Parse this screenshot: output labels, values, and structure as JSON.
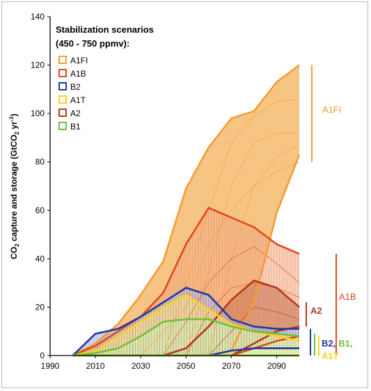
{
  "chart_data": {
    "type": "area",
    "title": "Stabilization scenarios",
    "subtitle": "(450 - 750 ppmv):",
    "xlabel": "",
    "ylabel_main": "CO",
    "ylabel_sub": "2",
    "ylabel_mid": " capture and storage (GtCO",
    "ylabel_sub2": "2",
    "ylabel_end": " yr",
    "ylabel_sup": "-1",
    "ylabel_close": ")",
    "xlim": [
      1990,
      2100
    ],
    "ylim": [
      0,
      140
    ],
    "xticks": [
      1990,
      2010,
      2030,
      2050,
      2070,
      2090
    ],
    "yticks": [
      0,
      20,
      40,
      60,
      80,
      100,
      120,
      140
    ],
    "legend": [
      {
        "name": "A1FI",
        "color": "#f39c34"
      },
      {
        "name": "A1B",
        "color": "#e2471d"
      },
      {
        "name": "B2",
        "color": "#1f3aa0"
      },
      {
        "name": "A1T",
        "color": "#ffd21a"
      },
      {
        "name": "A2",
        "color": "#b33a1e"
      },
      {
        "name": "B1",
        "color": "#6fbf3a"
      }
    ],
    "series": [
      {
        "name": "A1FI",
        "color": "#f39c34",
        "fill": "#f7c27c",
        "upper": [
          [
            2000,
            0
          ],
          [
            2010,
            5
          ],
          [
            2020,
            13
          ],
          [
            2030,
            25
          ],
          [
            2040,
            39
          ],
          [
            2050,
            69
          ],
          [
            2060,
            86
          ],
          [
            2070,
            98
          ],
          [
            2080,
            101
          ],
          [
            2090,
            113
          ],
          [
            2100,
            120
          ]
        ],
        "lower": [
          [
            2000,
            0
          ],
          [
            2010,
            0
          ],
          [
            2020,
            0
          ],
          [
            2030,
            0
          ],
          [
            2040,
            0
          ],
          [
            2050,
            0
          ],
          [
            2060,
            0
          ],
          [
            2070,
            2
          ],
          [
            2080,
            22
          ],
          [
            2090,
            59
          ],
          [
            2100,
            83
          ]
        ]
      },
      {
        "name": "A1B",
        "color": "#e2471d",
        "fill": "#f2b08a",
        "upper": [
          [
            2000,
            0
          ],
          [
            2010,
            4
          ],
          [
            2020,
            10
          ],
          [
            2030,
            16
          ],
          [
            2040,
            26
          ],
          [
            2050,
            46
          ],
          [
            2060,
            61
          ],
          [
            2070,
            57
          ],
          [
            2080,
            53
          ],
          [
            2090,
            46
          ],
          [
            2100,
            42
          ]
        ],
        "lower": [
          [
            2000,
            0
          ],
          [
            2010,
            0
          ],
          [
            2020,
            0
          ],
          [
            2030,
            0
          ],
          [
            2040,
            0
          ],
          [
            2050,
            0
          ],
          [
            2060,
            0
          ],
          [
            2070,
            0
          ],
          [
            2080,
            3
          ],
          [
            2090,
            6
          ],
          [
            2100,
            8
          ]
        ]
      },
      {
        "name": "A2",
        "color": "#b33a1e",
        "fill": "#c97a5a",
        "upper": [
          [
            2000,
            0
          ],
          [
            2020,
            0
          ],
          [
            2040,
            0
          ],
          [
            2050,
            3
          ],
          [
            2060,
            12
          ],
          [
            2070,
            23
          ],
          [
            2080,
            31
          ],
          [
            2090,
            28
          ],
          [
            2100,
            20
          ]
        ],
        "lower": [
          [
            2000,
            0
          ],
          [
            2060,
            0
          ],
          [
            2070,
            0
          ],
          [
            2080,
            5
          ],
          [
            2090,
            10
          ],
          [
            2100,
            12
          ]
        ]
      },
      {
        "name": "B2",
        "color": "#1f3aa0",
        "fill": "#b8c3ea",
        "upper": [
          [
            2000,
            0
          ],
          [
            2010,
            9
          ],
          [
            2020,
            11
          ],
          [
            2030,
            16
          ],
          [
            2040,
            22
          ],
          [
            2050,
            28
          ],
          [
            2060,
            25
          ],
          [
            2070,
            15
          ],
          [
            2080,
            12
          ],
          [
            2090,
            11
          ],
          [
            2100,
            11
          ]
        ],
        "lower": [
          [
            2000,
            0
          ],
          [
            2060,
            0
          ],
          [
            2070,
            2
          ],
          [
            2080,
            3
          ],
          [
            2090,
            3
          ],
          [
            2100,
            3
          ]
        ]
      },
      {
        "name": "A1T",
        "color": "#ffd21a",
        "fill": "#fde58a",
        "upper": [
          [
            2000,
            0
          ],
          [
            2010,
            2
          ],
          [
            2020,
            8
          ],
          [
            2030,
            14
          ],
          [
            2040,
            20
          ],
          [
            2050,
            25
          ],
          [
            2060,
            19
          ],
          [
            2070,
            13
          ],
          [
            2080,
            10
          ],
          [
            2090,
            8
          ],
          [
            2100,
            6
          ]
        ],
        "lower": [
          [
            2000,
            0
          ],
          [
            2100,
            0
          ]
        ]
      },
      {
        "name": "B1",
        "color": "#6fbf3a",
        "fill": "#d7eec3",
        "upper": [
          [
            2000,
            0
          ],
          [
            2010,
            1
          ],
          [
            2020,
            3
          ],
          [
            2030,
            8
          ],
          [
            2040,
            14
          ],
          [
            2050,
            15
          ],
          [
            2060,
            15
          ],
          [
            2070,
            12
          ],
          [
            2080,
            10
          ],
          [
            2090,
            9
          ],
          [
            2100,
            8
          ]
        ],
        "lower": [
          [
            2000,
            0
          ],
          [
            2100,
            0
          ]
        ]
      }
    ],
    "range_bars": [
      {
        "label": "A1FI",
        "color": "#f39c34",
        "min": 80,
        "max": 120
      },
      {
        "label": "A1B",
        "color": "#e2471d",
        "min": 0,
        "max": 42
      },
      {
        "label": "A2",
        "color": "#b33a1e",
        "min": 12,
        "max": 22
      }
    ],
    "small_bars": [
      {
        "color": "#1f3aa0",
        "min": 0,
        "max": 11
      },
      {
        "color": "#6fbf3a",
        "min": 0,
        "max": 9
      },
      {
        "color": "#ffd21a",
        "min": 0,
        "max": 8
      }
    ],
    "bar_labels": {
      "a1fi": "A1FI",
      "a1b": "A1B",
      "a2": "A2",
      "b2": "B2",
      "comma1": ",",
      "b1": "B1",
      "comma2": ",",
      "a1t": "A1T"
    }
  }
}
